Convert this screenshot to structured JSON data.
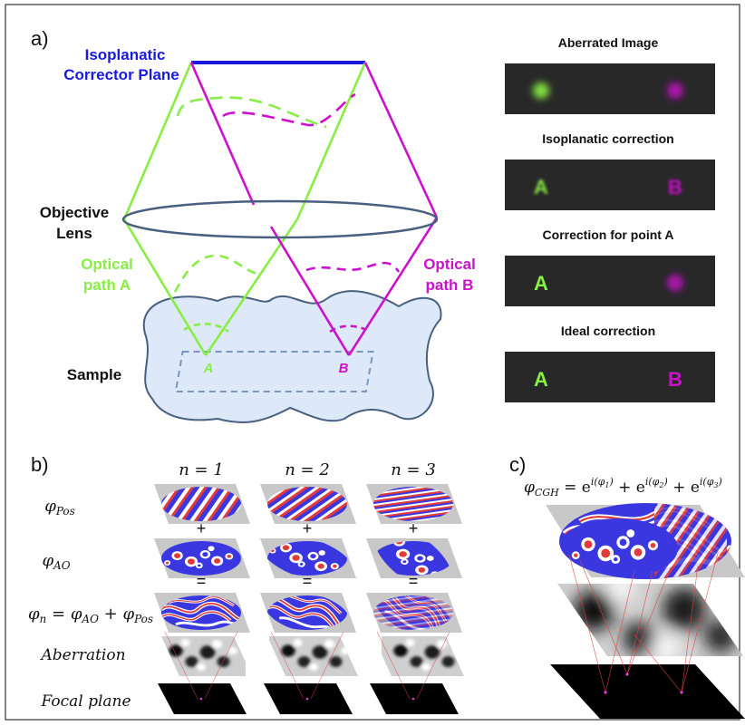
{
  "panel_a": {
    "label": "a)",
    "corrector_plane": "Isoplanatic Corrector Plane",
    "objective_lens": "Objective Lens",
    "optical_path_a": "Optical path A",
    "optical_path_b": "Optical path B",
    "sample": "Sample",
    "point_a": "A",
    "point_b": "B",
    "colors": {
      "path_a": "#88ee44",
      "path_b": "#cc11cc",
      "corrector": "#1a1adf",
      "lens": "#4a6080",
      "sample_fill": "#dde9f8"
    },
    "panels": [
      {
        "title": "Aberrated Image",
        "left": "A",
        "right": "B",
        "state_left": "blurred",
        "state_right": "blurred"
      },
      {
        "title": "Isoplanatic correction",
        "left": "A",
        "right": "B",
        "state_left": "partial",
        "state_right": "partial"
      },
      {
        "title": "Correction for point  A",
        "left": "A",
        "right": "B",
        "state_left": "sharp",
        "state_right": "blurred"
      },
      {
        "title": "Ideal correction",
        "left": "A",
        "right": "B",
        "state_left": "sharp",
        "state_right": "sharp"
      }
    ]
  },
  "panel_b": {
    "label": "b)",
    "columns": [
      "n = 1",
      "n = 2",
      "n = 3"
    ],
    "row_labels": {
      "pos": "φPos",
      "ao": "φAO",
      "sum": "φn =  φAO + φPos",
      "aberration": "Aberration",
      "focal": "Focal plane"
    },
    "plus": "+",
    "equals": "="
  },
  "panel_c": {
    "label": "c)",
    "equation": "φCGH = e^i(φ1) + e^i(φ2) + e^i(φ3)"
  }
}
